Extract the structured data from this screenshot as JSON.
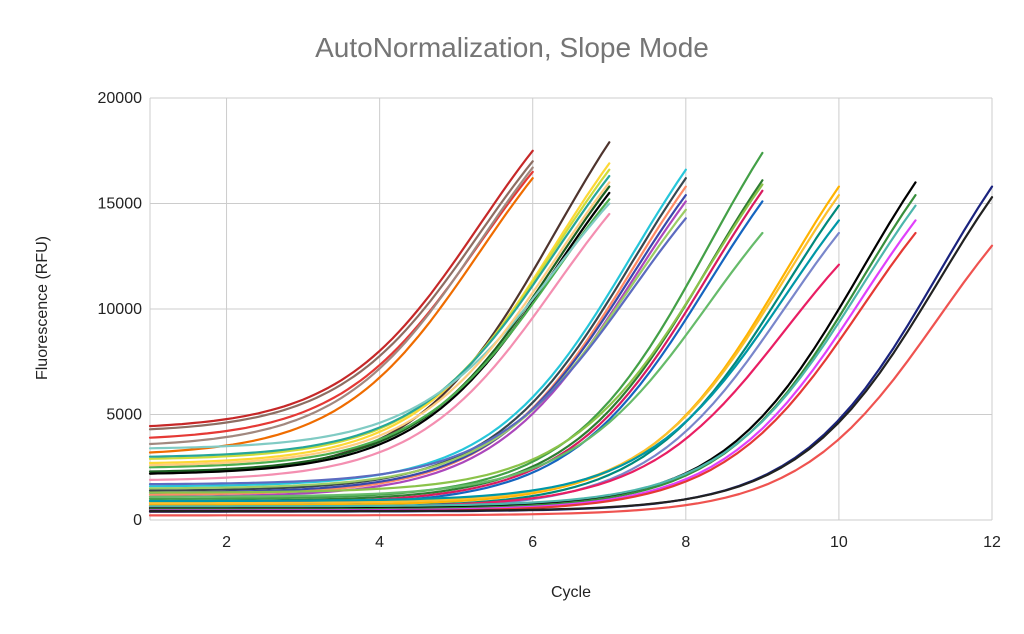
{
  "chart_data": {
    "type": "line",
    "title": "AutoNormalization, Slope Mode",
    "xlabel": "Cycle",
    "ylabel": "Fluorescence (RFU)",
    "xlim": [
      1,
      12
    ],
    "ylim": [
      0,
      20000
    ],
    "x_ticks": [
      2,
      4,
      6,
      8,
      10,
      12
    ],
    "y_ticks": [
      0,
      5000,
      10000,
      15000,
      20000
    ],
    "grid": true,
    "legend": "none",
    "series_model": "sigmoid",
    "series": [
      {
        "name": "s1",
        "color": "#c62828",
        "start": 1,
        "end": 6,
        "y0": 4450,
        "y1": 17500
      },
      {
        "name": "s2",
        "color": "#8d6e63",
        "start": 1,
        "end": 6,
        "y0": 4300,
        "y1": 17000
      },
      {
        "name": "s3",
        "color": "#e53935",
        "start": 1,
        "end": 6,
        "y0": 3900,
        "y1": 16500
      },
      {
        "name": "s4",
        "color": "#a1887f",
        "start": 1,
        "end": 6,
        "y0": 3600,
        "y1": 16700
      },
      {
        "name": "s5",
        "color": "#ef6c00",
        "start": 1,
        "end": 6,
        "y0": 3200,
        "y1": 16200
      },
      {
        "name": "s6",
        "color": "#4e342e",
        "start": 1,
        "end": 7,
        "y0": 2200,
        "y1": 17900
      },
      {
        "name": "s7",
        "color": "#fdd835",
        "start": 1,
        "end": 7,
        "y0": 2700,
        "y1": 16900
      },
      {
        "name": "s8",
        "color": "#cddc39",
        "start": 1,
        "end": 7,
        "y0": 2900,
        "y1": 16600
      },
      {
        "name": "s9",
        "color": "#26a69a",
        "start": 1,
        "end": 7,
        "y0": 3000,
        "y1": 16300
      },
      {
        "name": "s10",
        "color": "#1b5e20",
        "start": 1,
        "end": 7,
        "y0": 2300,
        "y1": 15800
      },
      {
        "name": "s11",
        "color": "#000000",
        "start": 1,
        "end": 7,
        "y0": 2200,
        "y1": 15500
      },
      {
        "name": "s12",
        "color": "#4caf50",
        "start": 1,
        "end": 7,
        "y0": 2500,
        "y1": 15200
      },
      {
        "name": "s13",
        "color": "#80cbc4",
        "start": 1,
        "end": 7,
        "y0": 3400,
        "y1": 15000
      },
      {
        "name": "s14",
        "color": "#f48fb1",
        "start": 1,
        "end": 7,
        "y0": 1900,
        "y1": 14500
      },
      {
        "name": "s15",
        "color": "#ffcc80",
        "start": 1,
        "end": 7,
        "y0": 2600,
        "y1": 16000
      },
      {
        "name": "s16",
        "color": "#26c6da",
        "start": 1,
        "end": 8,
        "y0": 1600,
        "y1": 16600
      },
      {
        "name": "s17",
        "color": "#37474f",
        "start": 1,
        "end": 8,
        "y0": 1400,
        "y1": 16200
      },
      {
        "name": "s18",
        "color": "#ff8a65",
        "start": 1,
        "end": 8,
        "y0": 1200,
        "y1": 15800
      },
      {
        "name": "s19",
        "color": "#3949ab",
        "start": 1,
        "end": 8,
        "y0": 1300,
        "y1": 15400
      },
      {
        "name": "s20",
        "color": "#ab47bc",
        "start": 1,
        "end": 8,
        "y0": 1100,
        "y1": 15100
      },
      {
        "name": "s21",
        "color": "#9ccc65",
        "start": 1,
        "end": 8,
        "y0": 1500,
        "y1": 14700
      },
      {
        "name": "s22",
        "color": "#5c6bc0",
        "start": 1,
        "end": 8,
        "y0": 1700,
        "y1": 14300
      },
      {
        "name": "s23",
        "color": "#43a047",
        "start": 1,
        "end": 9,
        "y0": 1000,
        "y1": 17400
      },
      {
        "name": "s24",
        "color": "#2e7d32",
        "start": 1,
        "end": 9,
        "y0": 900,
        "y1": 16100
      },
      {
        "name": "s25",
        "color": "#d81b60",
        "start": 1,
        "end": 9,
        "y0": 800,
        "y1": 15600
      },
      {
        "name": "s26",
        "color": "#1565c0",
        "start": 1,
        "end": 9,
        "y0": 700,
        "y1": 15100
      },
      {
        "name": "s27",
        "color": "#66bb6a",
        "start": 1,
        "end": 9,
        "y0": 1100,
        "y1": 13600
      },
      {
        "name": "s28",
        "color": "#8bc34a",
        "start": 1,
        "end": 9,
        "y0": 1300,
        "y1": 15900
      },
      {
        "name": "s29",
        "color": "#ffb300",
        "start": 1,
        "end": 10,
        "y0": 700,
        "y1": 15800
      },
      {
        "name": "s30",
        "color": "#fbc02d",
        "start": 1,
        "end": 10,
        "y0": 800,
        "y1": 15400
      },
      {
        "name": "s31",
        "color": "#00897b",
        "start": 1,
        "end": 10,
        "y0": 600,
        "y1": 14900
      },
      {
        "name": "s32",
        "color": "#0097a7",
        "start": 1,
        "end": 10,
        "y0": 900,
        "y1": 14200
      },
      {
        "name": "s33",
        "color": "#7986cb",
        "start": 1,
        "end": 10,
        "y0": 500,
        "y1": 13600
      },
      {
        "name": "s34",
        "color": "#e91e63",
        "start": 1,
        "end": 10,
        "y0": 600,
        "y1": 12100
      },
      {
        "name": "s35",
        "color": "#000000",
        "start": 1,
        "end": 11,
        "y0": 550,
        "y1": 16000
      },
      {
        "name": "s36",
        "color": "#388e3c",
        "start": 1,
        "end": 11,
        "y0": 500,
        "y1": 15400
      },
      {
        "name": "s37",
        "color": "#4db6ac",
        "start": 1,
        "end": 11,
        "y0": 650,
        "y1": 14900
      },
      {
        "name": "s38",
        "color": "#e040fb",
        "start": 1,
        "end": 11,
        "y0": 450,
        "y1": 14200
      },
      {
        "name": "s39",
        "color": "#e53935",
        "start": 1,
        "end": 11,
        "y0": 400,
        "y1": 13600
      },
      {
        "name": "s40",
        "color": "#1a237e",
        "start": 1,
        "end": 12,
        "y0": 400,
        "y1": 15800
      },
      {
        "name": "s41",
        "color": "#212121",
        "start": 1,
        "end": 12,
        "y0": 420,
        "y1": 15300
      },
      {
        "name": "s42",
        "color": "#ef5350",
        "start": 1,
        "end": 12,
        "y0": 220,
        "y1": 13000
      }
    ]
  }
}
